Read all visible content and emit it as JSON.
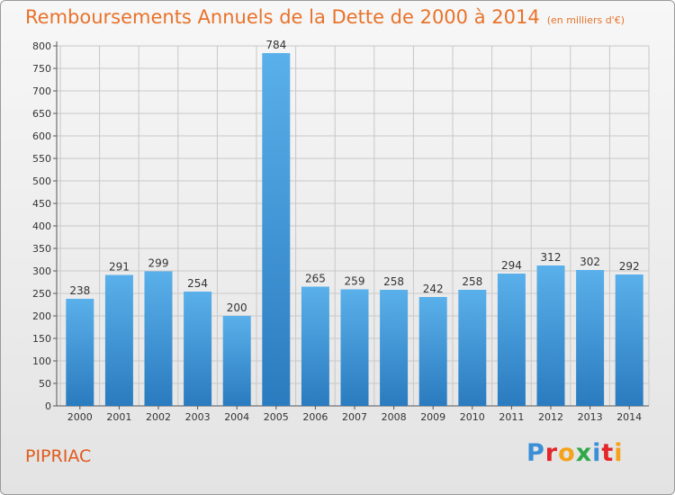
{
  "header": {
    "title": "Remboursements Annuels de la Dette de 2000 à 2014",
    "unit": "(en milliers d'€)"
  },
  "footer": {
    "commune": "PIPRIAC",
    "logo_text": "Proxiti",
    "logo_colors": [
      "#3a8fd8",
      "#e2262a",
      "#f4a21b",
      "#2fa84a",
      "#3a8fd8",
      "#e2262a",
      "#f4a21b"
    ]
  },
  "colors": {
    "bar_light": "#5ab0ea",
    "bar_dark": "#2a7bbf",
    "title": "#e8722a",
    "commune": "#e05a1c",
    "grid": "#c8c8c8"
  },
  "chart_data": {
    "type": "bar",
    "categories": [
      "2000",
      "2001",
      "2002",
      "2003",
      "2004",
      "2005",
      "2006",
      "2007",
      "2008",
      "2009",
      "2010",
      "2011",
      "2012",
      "2013",
      "2014"
    ],
    "values": [
      238,
      291,
      299,
      254,
      200,
      784,
      265,
      259,
      258,
      242,
      258,
      294,
      312,
      302,
      292
    ],
    "data_labels": [
      "238",
      "291",
      "299",
      "254",
      "200",
      "784",
      "265",
      "259",
      "258",
      "242",
      "258",
      "294",
      "312",
      "302",
      "292"
    ],
    "title": "Remboursements Annuels de la Dette de 2000 à 2014",
    "xlabel": "",
    "ylabel": "",
    "ylim": [
      0,
      800
    ],
    "yticks": [
      0,
      50,
      100,
      150,
      200,
      250,
      300,
      350,
      400,
      450,
      500,
      550,
      600,
      650,
      700,
      750,
      800
    ],
    "grid": true,
    "legend": "none"
  }
}
